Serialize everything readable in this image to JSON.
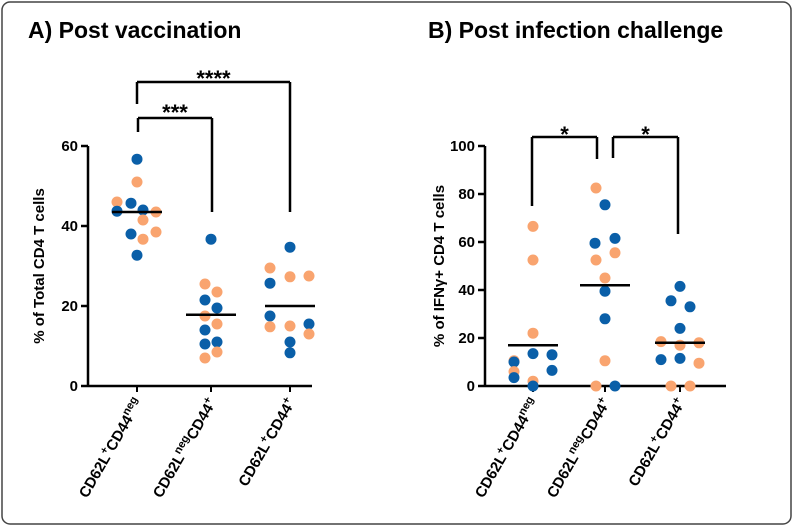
{
  "colors": {
    "group_a": "#0a5fa8",
    "group_b": "#f9a46f",
    "axis": "#000000"
  },
  "chart_data": [
    {
      "type": "scatter",
      "title": "A) Post vaccination",
      "ylabel": "% of Total CD4 T cells",
      "ylim": [
        0,
        60
      ],
      "yticks": [
        "0",
        "20",
        "40",
        "60"
      ],
      "categories": [
        {
          "parts": [
            [
              "CD62L",
              "+"
            ],
            [
              "CD44",
              "neg"
            ]
          ]
        },
        {
          "parts": [
            [
              "CD62L",
              "neg"
            ],
            [
              "CD44",
              "+"
            ]
          ]
        },
        {
          "parts": [
            [
              "CD62L",
              "+"
            ],
            [
              "CD44",
              "+"
            ]
          ]
        }
      ],
      "medians": [
        43.5,
        17.8,
        20
      ],
      "points": [
        [
          {
            "v": 56.7,
            "c": "blue"
          },
          {
            "v": 51,
            "c": "orange"
          },
          {
            "v": 46,
            "c": "orange"
          },
          {
            "v": 45.7,
            "c": "blue"
          },
          {
            "v": 43.7,
            "c": "blue"
          },
          {
            "v": 44,
            "c": "blue"
          },
          {
            "v": 43.5,
            "c": "orange"
          },
          {
            "v": 41.5,
            "c": "orange"
          },
          {
            "v": 38,
            "c": "blue"
          },
          {
            "v": 36.7,
            "c": "orange"
          },
          {
            "v": 38.5,
            "c": "orange"
          },
          {
            "v": 32.7,
            "c": "blue"
          }
        ],
        [
          {
            "v": 36.7,
            "c": "blue"
          },
          {
            "v": 25.5,
            "c": "orange"
          },
          {
            "v": 23.5,
            "c": "orange"
          },
          {
            "v": 21.5,
            "c": "blue"
          },
          {
            "v": 19.5,
            "c": "blue"
          },
          {
            "v": 17.5,
            "c": "orange"
          },
          {
            "v": 15.5,
            "c": "orange"
          },
          {
            "v": 14,
            "c": "blue"
          },
          {
            "v": 11,
            "c": "blue"
          },
          {
            "v": 10.5,
            "c": "blue"
          },
          {
            "v": 8.5,
            "c": "orange"
          },
          {
            "v": 7,
            "c": "orange"
          }
        ],
        [
          {
            "v": 34.7,
            "c": "blue"
          },
          {
            "v": 29.5,
            "c": "orange"
          },
          {
            "v": 27.3,
            "c": "orange"
          },
          {
            "v": 27.5,
            "c": "orange"
          },
          {
            "v": 25.7,
            "c": "blue"
          },
          {
            "v": 17.5,
            "c": "blue"
          },
          {
            "v": 15.5,
            "c": "blue"
          },
          {
            "v": 14.8,
            "c": "orange"
          },
          {
            "v": 15,
            "c": "orange"
          },
          {
            "v": 13,
            "c": "orange"
          },
          {
            "v": 11,
            "c": "blue"
          },
          {
            "v": 8.3,
            "c": "blue"
          }
        ]
      ],
      "significance": [
        {
          "from": 0,
          "to": 1,
          "label": "***"
        },
        {
          "from": 0,
          "to": 2,
          "label": "****"
        }
      ]
    },
    {
      "type": "scatter",
      "title": "B) Post infection challenge",
      "ylabel": "% of IFNγ+ CD4 T cells",
      "ylim": [
        0,
        100
      ],
      "yticks": [
        "0",
        "20",
        "40",
        "60",
        "80",
        "100"
      ],
      "categories": [
        {
          "parts": [
            [
              "CD62L",
              "+"
            ],
            [
              "CD44",
              "neg"
            ]
          ]
        },
        {
          "parts": [
            [
              "CD62L",
              "neg"
            ],
            [
              "CD44",
              "+"
            ]
          ]
        },
        {
          "parts": [
            [
              "CD62L",
              "+"
            ],
            [
              "CD44",
              "+"
            ]
          ]
        }
      ],
      "medians": [
        17,
        42,
        18
      ],
      "points": [
        [
          {
            "v": 66.5,
            "c": "orange"
          },
          {
            "v": 52.5,
            "c": "orange"
          },
          {
            "v": 22,
            "c": "orange"
          },
          {
            "v": 13.5,
            "c": "blue"
          },
          {
            "v": 13,
            "c": "blue"
          },
          {
            "v": 10.5,
            "c": "orange"
          },
          {
            "v": 10,
            "c": "blue"
          },
          {
            "v": 6,
            "c": "orange"
          },
          {
            "v": 6.5,
            "c": "blue"
          },
          {
            "v": 3.5,
            "c": "blue"
          },
          {
            "v": 2,
            "c": "orange"
          },
          {
            "v": 0,
            "c": "blue"
          }
        ],
        [
          {
            "v": 82.5,
            "c": "orange"
          },
          {
            "v": 75.5,
            "c": "blue"
          },
          {
            "v": 61.5,
            "c": "blue"
          },
          {
            "v": 59.5,
            "c": "blue"
          },
          {
            "v": 55.5,
            "c": "orange"
          },
          {
            "v": 52.5,
            "c": "orange"
          },
          {
            "v": 45,
            "c": "orange"
          },
          {
            "v": 39.5,
            "c": "blue"
          },
          {
            "v": 28,
            "c": "blue"
          },
          {
            "v": 10.5,
            "c": "orange"
          },
          {
            "v": 0,
            "c": "orange"
          },
          {
            "v": 0,
            "c": "blue"
          }
        ],
        [
          {
            "v": 41.5,
            "c": "blue"
          },
          {
            "v": 35.5,
            "c": "blue"
          },
          {
            "v": 33,
            "c": "blue"
          },
          {
            "v": 24,
            "c": "blue"
          },
          {
            "v": 18.5,
            "c": "orange"
          },
          {
            "v": 18,
            "c": "orange"
          },
          {
            "v": 17,
            "c": "orange"
          },
          {
            "v": 11,
            "c": "blue"
          },
          {
            "v": 11.5,
            "c": "blue"
          },
          {
            "v": 9.5,
            "c": "orange"
          },
          {
            "v": 0,
            "c": "orange"
          },
          {
            "v": 0,
            "c": "orange"
          }
        ]
      ],
      "significance": [
        {
          "from": 0,
          "to": 1,
          "label": "*"
        },
        {
          "from": 1,
          "to": 2,
          "label": "*"
        }
      ]
    }
  ]
}
